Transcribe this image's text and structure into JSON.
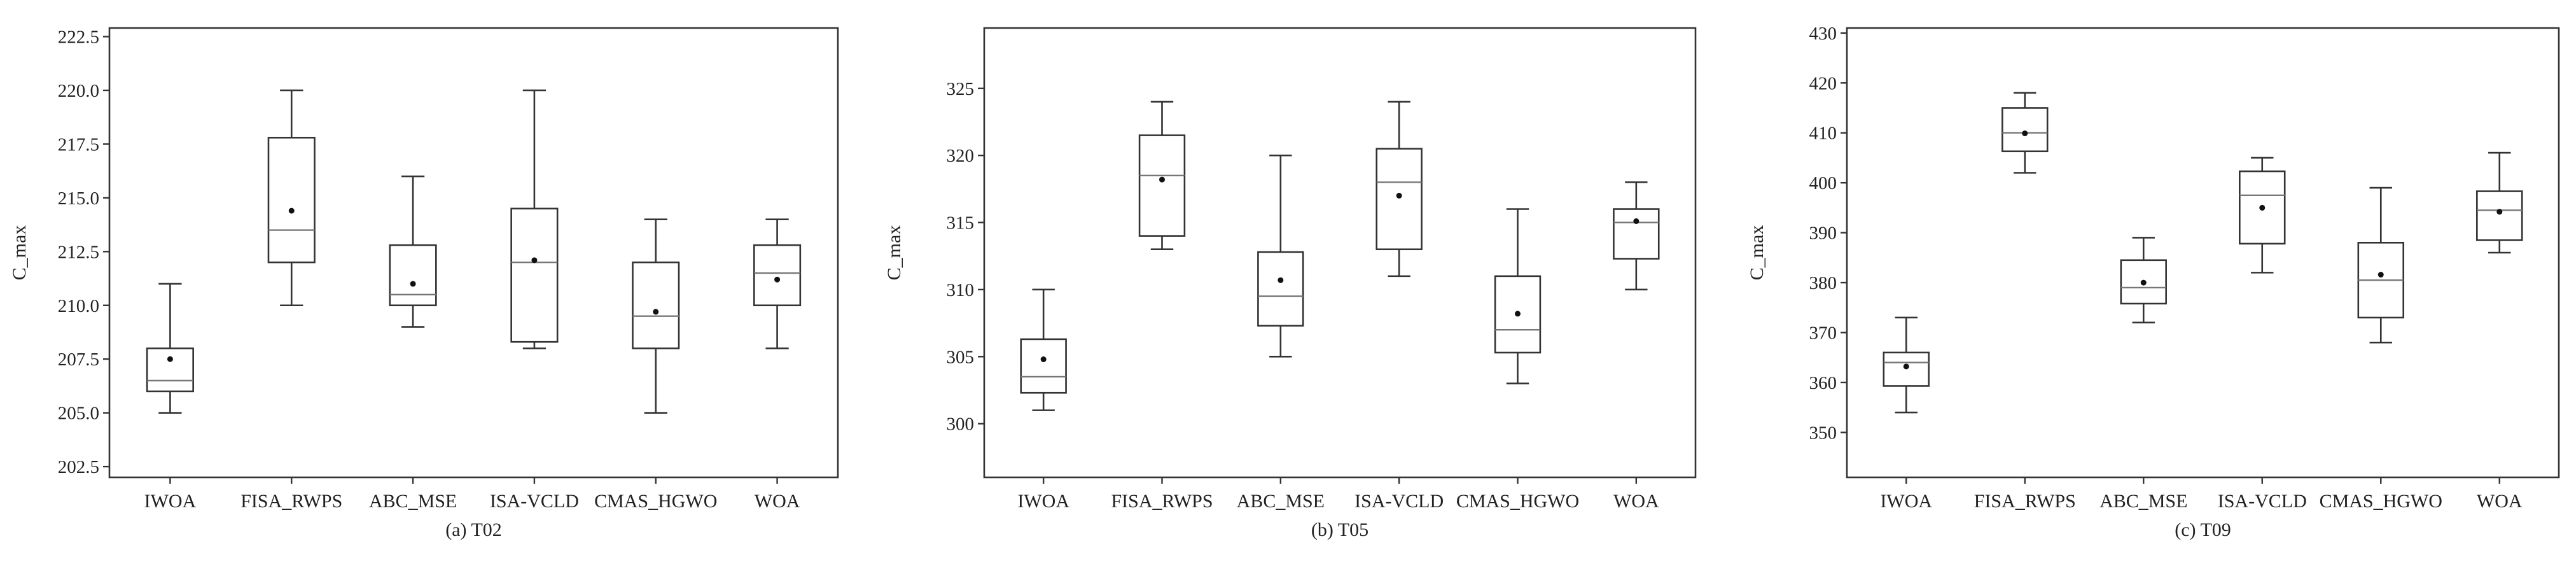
{
  "chart_data": [
    {
      "type": "box",
      "caption": "(a) T02",
      "ylabel": "C_max",
      "ylim": [
        202.0,
        222.9
      ],
      "yticks": [
        "202.5",
        "205.0",
        "207.5",
        "210.0",
        "212.5",
        "215.0",
        "217.5",
        "220.0",
        "222.5"
      ],
      "categories": [
        "IWOA",
        "FISA_RWPS",
        "ABC_MSE",
        "ISA-VCLD",
        "CMAS_HGWO",
        "WOA"
      ],
      "boxes": [
        {
          "min": 205.0,
          "q1": 206.0,
          "median": 206.5,
          "q3": 208.0,
          "max": 211.0,
          "mean": 207.5
        },
        {
          "min": 210.0,
          "q1": 212.0,
          "median": 213.5,
          "q3": 217.8,
          "max": 220.0,
          "mean": 214.4
        },
        {
          "min": 209.0,
          "q1": 210.0,
          "median": 210.5,
          "q3": 212.8,
          "max": 216.0,
          "mean": 211.0
        },
        {
          "min": 208.0,
          "q1": 208.3,
          "median": 212.0,
          "q3": 214.5,
          "max": 220.0,
          "mean": 212.1
        },
        {
          "min": 205.0,
          "q1": 208.0,
          "median": 209.5,
          "q3": 212.0,
          "max": 214.0,
          "mean": 209.7
        },
        {
          "min": 208.0,
          "q1": 210.0,
          "median": 211.5,
          "q3": 212.8,
          "max": 214.0,
          "mean": 211.2
        }
      ]
    },
    {
      "type": "box",
      "caption": "(b) T05",
      "ylabel": "C_max",
      "ylim": [
        296.0,
        329.5
      ],
      "yticks": [
        "300",
        "305",
        "310",
        "315",
        "320",
        "325"
      ],
      "categories": [
        "IWOA",
        "FISA_RWPS",
        "ABC_MSE",
        "ISA-VCLD",
        "CMAS_HGWO",
        "WOA"
      ],
      "boxes": [
        {
          "min": 301.0,
          "q1": 302.3,
          "median": 303.5,
          "q3": 306.3,
          "max": 310.0,
          "mean": 304.8
        },
        {
          "min": 313.0,
          "q1": 314.0,
          "median": 318.5,
          "q3": 321.5,
          "max": 324.0,
          "mean": 318.2
        },
        {
          "min": 305.0,
          "q1": 307.3,
          "median": 309.5,
          "q3": 312.8,
          "max": 320.0,
          "mean": 310.7
        },
        {
          "min": 311.0,
          "q1": 313.0,
          "median": 318.0,
          "q3": 320.5,
          "max": 324.0,
          "mean": 317.0
        },
        {
          "min": 303.0,
          "q1": 305.3,
          "median": 307.0,
          "q3": 311.0,
          "max": 316.0,
          "mean": 308.2
        },
        {
          "min": 310.0,
          "q1": 312.3,
          "median": 315.0,
          "q3": 316.0,
          "max": 318.0,
          "mean": 315.1
        }
      ]
    },
    {
      "type": "box",
      "caption": "(c) T09",
      "ylabel": "C_max",
      "ylim": [
        341.0,
        431.0
      ],
      "yticks": [
        "350",
        "360",
        "370",
        "380",
        "390",
        "400",
        "410",
        "420",
        "430"
      ],
      "categories": [
        "IWOA",
        "FISA_RWPS",
        "ABC_MSE",
        "ISA-VCLD",
        "CMAS_HGWO",
        "WOA"
      ],
      "boxes": [
        {
          "min": 354.0,
          "q1": 359.3,
          "median": 364.0,
          "q3": 366.0,
          "max": 373.0,
          "mean": 363.2
        },
        {
          "min": 402.0,
          "q1": 406.3,
          "median": 410.0,
          "q3": 415.0,
          "max": 418.0,
          "mean": 409.9
        },
        {
          "min": 372.0,
          "q1": 375.8,
          "median": 379.0,
          "q3": 384.5,
          "max": 389.0,
          "mean": 380.0
        },
        {
          "min": 382.0,
          "q1": 387.8,
          "median": 397.5,
          "q3": 402.3,
          "max": 405.0,
          "mean": 395.0
        },
        {
          "min": 368.0,
          "q1": 373.0,
          "median": 380.5,
          "q3": 388.0,
          "max": 399.0,
          "mean": 381.6
        },
        {
          "min": 386.0,
          "q1": 388.5,
          "median": 394.5,
          "q3": 398.3,
          "max": 406.0,
          "mean": 394.2
        }
      ]
    }
  ]
}
